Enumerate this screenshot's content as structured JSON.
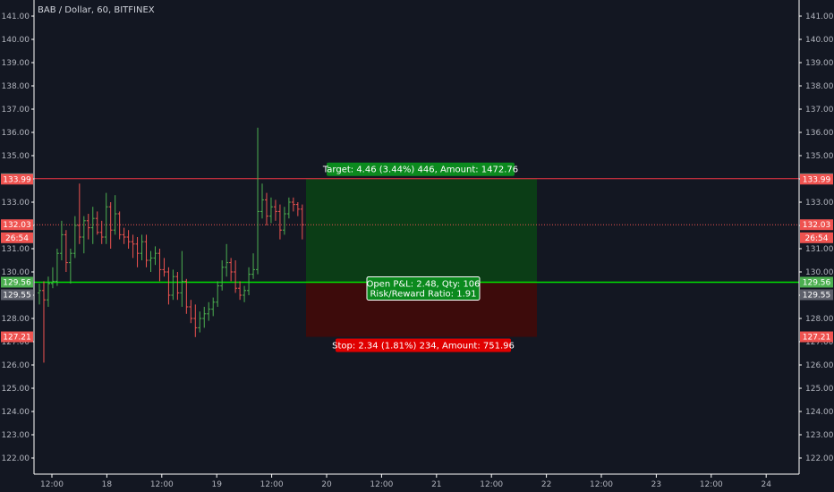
{
  "header": {
    "symbol_title": "BAB / Dollar, 60, BITFINEX"
  },
  "colors": {
    "background": "#131722",
    "axis_line": "#ffffff",
    "up": "#26a69a",
    "down": "#ef5350",
    "up_body": "#4caf50",
    "target_zone": "#0b3d16",
    "stop_zone": "#3d0b0b",
    "target_line": "#f23645",
    "entry_line": "#00e000",
    "current_line": "#ef5350"
  },
  "chart_data": {
    "type": "ohlc",
    "y_ticks": [
      "141.00",
      "140.00",
      "139.00",
      "138.00",
      "137.00",
      "136.00",
      "135.00",
      "134.00",
      "133.00",
      "132.00",
      "131.00",
      "130.00",
      "129.00",
      "128.00",
      "127.00",
      "126.00",
      "125.00",
      "124.00",
      "123.00",
      "122.00"
    ],
    "y_range": [
      121.5,
      141.5
    ],
    "x_ticks": [
      "12:00",
      "18",
      "12:00",
      "19",
      "12:00",
      "20",
      "12:00",
      "21",
      "12:00",
      "22",
      "12:00",
      "23",
      "12:00",
      "24"
    ],
    "price_tags": [
      {
        "id": "tag-target",
        "value": "134.01",
        "price": 134.01,
        "color": "#26a69a"
      },
      {
        "id": "tag-134-99",
        "value": "133.99",
        "price": 133.99,
        "color": "#ef5350"
      },
      {
        "id": "tag-last",
        "value": "132.03",
        "price": 132.03,
        "color": "#ef5350"
      },
      {
        "id": "tag-countdown",
        "value": "26:54",
        "price": 131.47,
        "color": "#ef5350"
      },
      {
        "id": "tag-entry",
        "value": "129.56",
        "price": 129.56,
        "color": "#4caf50"
      },
      {
        "id": "tag-129-55",
        "value": "129.55",
        "price": 129.02,
        "color": "#5d606b"
      },
      {
        "id": "tag-stop",
        "value": "127.21",
        "price": 127.21,
        "color": "#ef5350"
      }
    ],
    "position": {
      "entry": 129.56,
      "target": 134.01,
      "stop": 127.21,
      "target_label": "Target: 4.46 (3.44%) 446, Amount: 1472.76",
      "stop_label": "Stop: 2.34 (1.81%) 234, Amount: 751.96",
      "pnl_label": "Open P&L: 2.48, Qty: 106",
      "rr_label": "Risk/Reward Ratio: 1.91"
    },
    "last_price": 132.03,
    "bars": [
      [
        129.1,
        129.5,
        128.6,
        129.2
      ],
      [
        129.2,
        129.6,
        126.1,
        128.8
      ],
      [
        128.8,
        129.8,
        128.5,
        129.5
      ],
      [
        129.5,
        130.2,
        129.3,
        129.6
      ],
      [
        129.6,
        131.0,
        129.4,
        130.8
      ],
      [
        130.8,
        132.2,
        130.5,
        131.6
      ],
      [
        131.6,
        131.8,
        130.0,
        130.4
      ],
      [
        130.4,
        131.0,
        129.5,
        130.8
      ],
      [
        130.8,
        132.4,
        130.6,
        132.0
      ],
      [
        132.0,
        133.8,
        131.2,
        131.5
      ],
      [
        131.5,
        132.4,
        130.8,
        132.2
      ],
      [
        132.2,
        132.5,
        131.4,
        131.9
      ],
      [
        131.9,
        132.8,
        131.2,
        132.3
      ],
      [
        132.3,
        132.6,
        131.6,
        131.7
      ],
      [
        131.7,
        132.2,
        131.2,
        131.5
      ],
      [
        131.5,
        133.4,
        131.2,
        132.8
      ],
      [
        132.8,
        133.0,
        131.0,
        131.8
      ],
      [
        131.8,
        133.3,
        131.6,
        132.5
      ],
      [
        132.5,
        132.6,
        131.4,
        131.6
      ],
      [
        131.6,
        131.9,
        131.2,
        131.5
      ],
      [
        131.5,
        131.8,
        131.0,
        131.3
      ],
      [
        131.3,
        131.6,
        130.6,
        131.2
      ],
      [
        131.2,
        131.5,
        130.2,
        130.8
      ],
      [
        130.8,
        131.6,
        130.5,
        131.3
      ],
      [
        131.3,
        131.6,
        130.2,
        130.5
      ],
      [
        130.5,
        130.9,
        130.0,
        130.6
      ],
      [
        130.6,
        131.1,
        130.3,
        130.8
      ],
      [
        130.8,
        131.0,
        129.6,
        130.1
      ],
      [
        130.1,
        130.6,
        129.8,
        130.0
      ],
      [
        130.0,
        130.2,
        128.6,
        129.0
      ],
      [
        129.0,
        130.1,
        128.8,
        129.8
      ],
      [
        129.8,
        130.0,
        128.8,
        129.1
      ],
      [
        129.1,
        130.9,
        128.5,
        129.6
      ],
      [
        129.6,
        129.7,
        128.2,
        128.5
      ],
      [
        128.5,
        128.8,
        127.8,
        128.0
      ],
      [
        128.0,
        128.6,
        127.2,
        127.6
      ],
      [
        127.6,
        128.3,
        127.4,
        128.0
      ],
      [
        128.0,
        128.5,
        127.6,
        128.2
      ],
      [
        128.2,
        128.7,
        127.9,
        128.4
      ],
      [
        128.4,
        128.9,
        128.1,
        128.7
      ],
      [
        128.7,
        129.6,
        128.5,
        129.4
      ],
      [
        129.4,
        130.5,
        129.2,
        130.2
      ],
      [
        130.2,
        131.2,
        129.8,
        130.4
      ],
      [
        130.4,
        130.6,
        129.6,
        130.0
      ],
      [
        130.0,
        130.5,
        129.1,
        129.3
      ],
      [
        129.3,
        129.6,
        128.8,
        129.0
      ],
      [
        129.0,
        129.4,
        128.7,
        129.2
      ],
      [
        129.2,
        130.2,
        129.0,
        129.9
      ],
      [
        129.9,
        130.8,
        129.7,
        130.1
      ],
      [
        130.1,
        136.2,
        129.9,
        132.6
      ],
      [
        132.6,
        133.8,
        132.3,
        133.1
      ],
      [
        133.1,
        133.4,
        132.0,
        132.4
      ],
      [
        132.4,
        133.2,
        132.1,
        132.8
      ],
      [
        132.8,
        133.1,
        132.2,
        132.6
      ],
      [
        132.6,
        132.9,
        131.4,
        131.8
      ],
      [
        131.8,
        132.8,
        131.6,
        132.5
      ],
      [
        132.5,
        133.2,
        132.3,
        133.0
      ],
      [
        133.0,
        133.2,
        132.6,
        132.9
      ],
      [
        132.9,
        133.0,
        132.4,
        132.7
      ],
      [
        132.7,
        132.9,
        131.4,
        132.03
      ]
    ]
  }
}
